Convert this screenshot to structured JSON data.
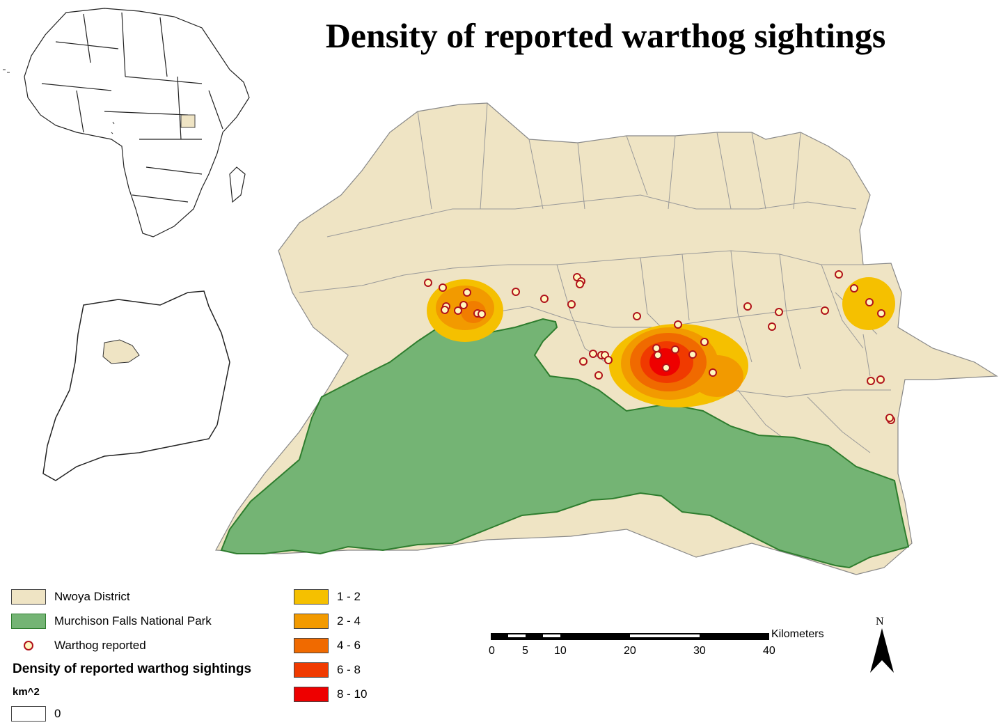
{
  "title": "Density of reported warthog sightings",
  "colors": {
    "district": "#efe4c4",
    "park": "#74b474",
    "park_border": "#2e7d2e",
    "boundary": "#888888",
    "point_fill": "#fff8c0",
    "point_stroke": "#b0121b"
  },
  "legend": {
    "district_label": "Nwoya District",
    "park_label": "Murchison Falls National Park",
    "point_label": "Warthog reported",
    "density_title": "Density of reported warthog sightings",
    "unit": "km^2",
    "classes": [
      {
        "label": "0",
        "color": "#ffffff"
      },
      {
        "label": "1 - 2",
        "color": "#f5c000"
      },
      {
        "label": "2 - 4",
        "color": "#f29a00"
      },
      {
        "label": "4 - 6",
        "color": "#f06a00"
      },
      {
        "label": "6 - 8",
        "color": "#f03a00"
      },
      {
        "label": "8 - 10",
        "color": "#ee0000"
      }
    ]
  },
  "scalebar": {
    "unit": "Kilometers",
    "ticks": [
      "0",
      "5",
      "10",
      "20",
      "30",
      "40"
    ]
  },
  "north_arrow": "N"
}
